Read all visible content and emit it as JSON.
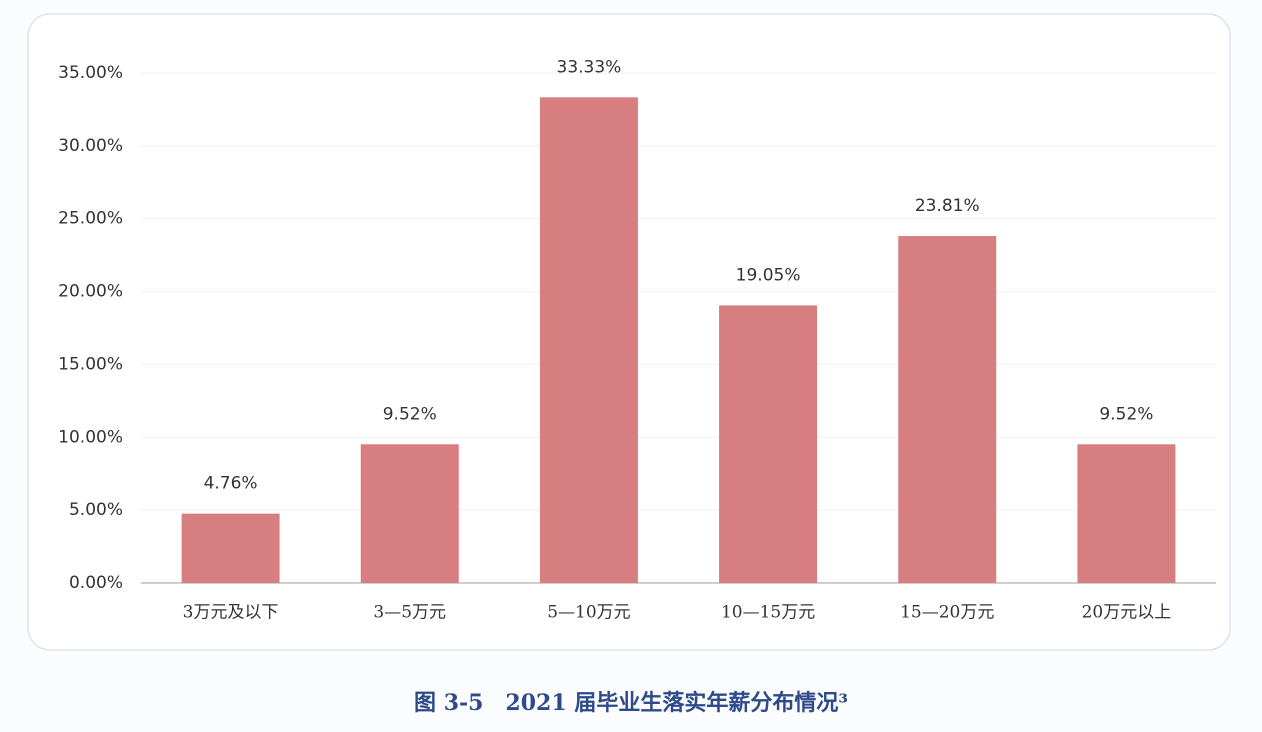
{
  "chart_data": {
    "type": "bar",
    "title": "图 3-5　2021 届毕业生落实年薪分布情况³",
    "categories": [
      "3万元及以下",
      "3—5万元",
      "5—10万元",
      "10—15万元",
      "15—20万元",
      "20万元以上"
    ],
    "values": [
      4.76,
      9.52,
      33.33,
      19.05,
      23.81,
      9.52
    ],
    "value_labels": [
      "4.76%",
      "9.52%",
      "33.33%",
      "19.05%",
      "23.81%",
      "9.52%"
    ],
    "color": "#d67e80",
    "ylim": [
      0,
      35
    ],
    "yticks": [
      {
        "value": 0,
        "label": "0.00%"
      },
      {
        "value": 5,
        "label": "5.00%"
      },
      {
        "value": 10,
        "label": "10.00%"
      },
      {
        "value": 15,
        "label": "15.00%"
      },
      {
        "value": 20,
        "label": "20.00%"
      },
      {
        "value": 25,
        "label": "25.00%"
      },
      {
        "value": 30,
        "label": "30.00%"
      },
      {
        "value": 35,
        "label": "35.00%"
      }
    ],
    "grid": true
  }
}
